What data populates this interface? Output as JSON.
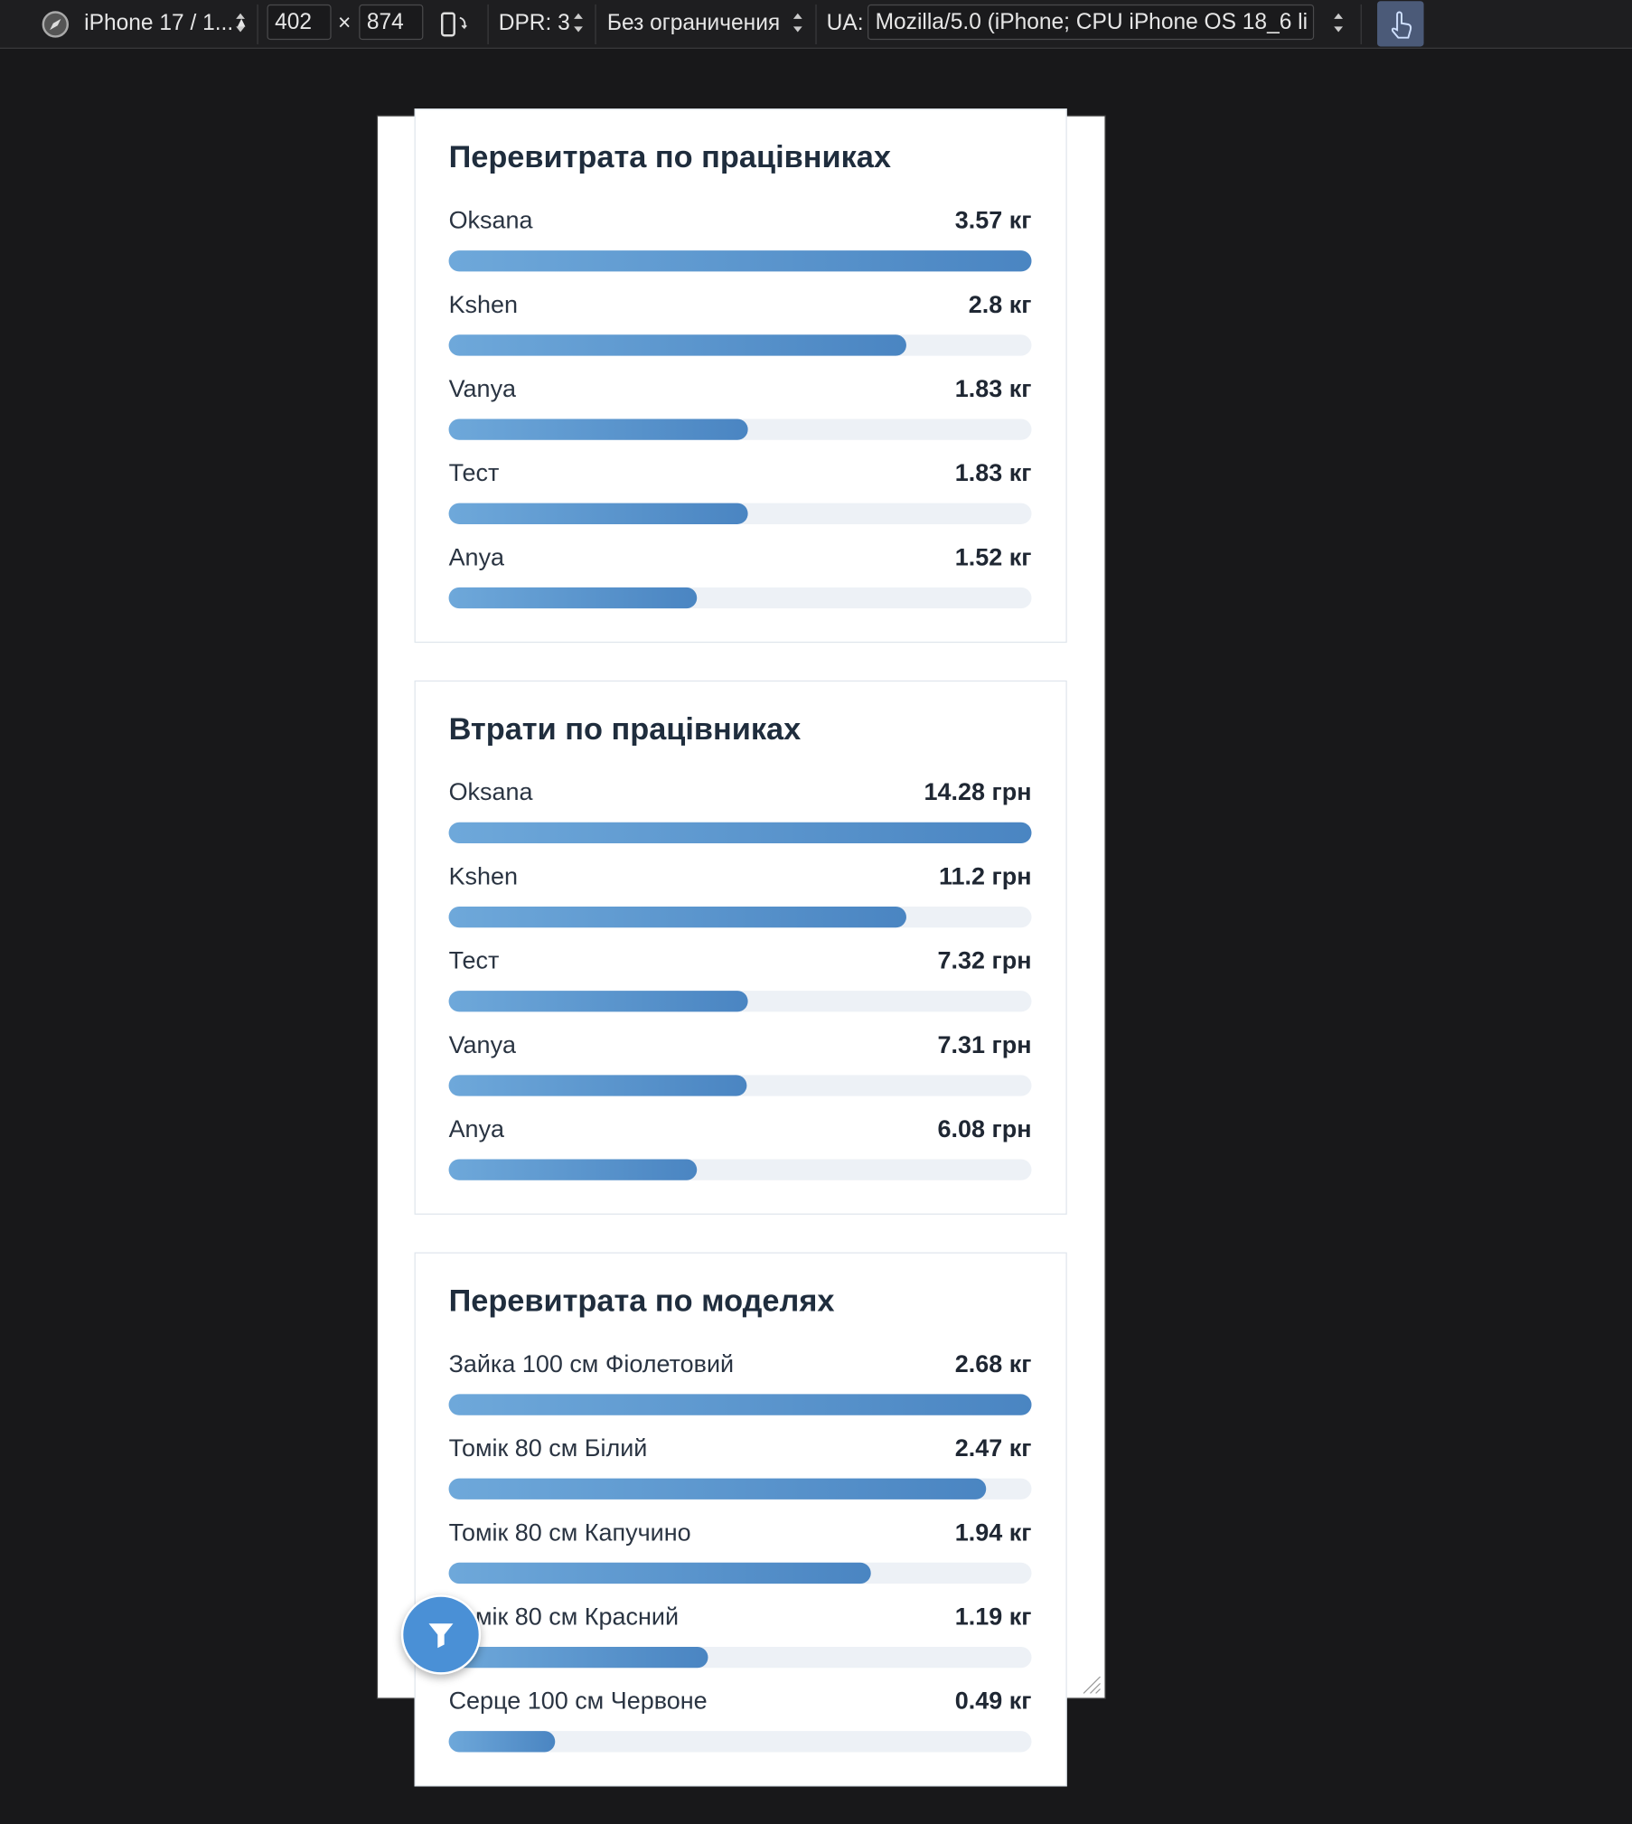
{
  "toolbar": {
    "device": "iPhone 17 / 1...",
    "width": "402",
    "times": "×",
    "height": "874",
    "dpr": "DPR: 3",
    "throttle": "Без ограничения",
    "ua_label": "UA:",
    "ua_value": "Mozilla/5.0 (iPhone; CPU iPhone OS 18_6 li"
  },
  "cards": [
    {
      "title": "Перевитрата по працівниках",
      "rows": [
        {
          "name": "Oksana",
          "value": 3.57,
          "value_label": "3.57 кг"
        },
        {
          "name": "Kshen",
          "value": 2.8,
          "value_label": "2.8 кг"
        },
        {
          "name": "Vanya",
          "value": 1.83,
          "value_label": "1.83 кг"
        },
        {
          "name": "Тест",
          "value": 1.83,
          "value_label": "1.83 кг"
        },
        {
          "name": "Anya",
          "value": 1.52,
          "value_label": "1.52 кг"
        }
      ]
    },
    {
      "title": "Втрати по працівниках",
      "rows": [
        {
          "name": "Oksana",
          "value": 14.28,
          "value_label": "14.28 грн"
        },
        {
          "name": "Kshen",
          "value": 11.2,
          "value_label": "11.2 грн"
        },
        {
          "name": "Тест",
          "value": 7.32,
          "value_label": "7.32 грн"
        },
        {
          "name": "Vanya",
          "value": 7.31,
          "value_label": "7.31 грн"
        },
        {
          "name": "Anya",
          "value": 6.08,
          "value_label": "6.08 грн"
        }
      ]
    },
    {
      "title": "Перевитрата по моделях",
      "rows": [
        {
          "name": "Зайка 100 см Фіолетовий",
          "value": 2.68,
          "value_label": "2.68 кг"
        },
        {
          "name": "Томік 80 см Білий",
          "value": 2.47,
          "value_label": "2.47 кг"
        },
        {
          "name": "Томік 80 см Капучино",
          "value": 1.94,
          "value_label": "1.94 кг"
        },
        {
          "name": "Томік 80 см Красний",
          "value": 1.19,
          "value_label": "1.19 кг"
        },
        {
          "name": "Серце 100 см Червоне",
          "value": 0.49,
          "value_label": "0.49 кг"
        }
      ]
    }
  ]
}
